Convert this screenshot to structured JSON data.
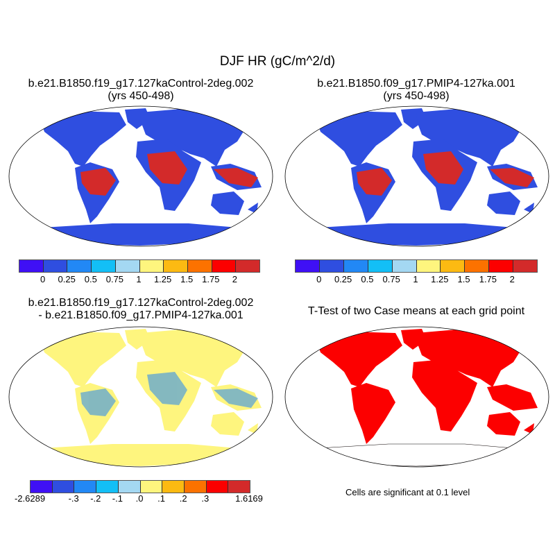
{
  "title": "DJF HR (gC/m^2/d)",
  "panels": [
    {
      "title_line1": "b.e21.B1850.f19_g17.127kaControl-2deg.002",
      "title_line2": "(yrs 450-498)"
    },
    {
      "title_line1": "b.e21.B1850.f09_g17.PMIP4-127ka.001",
      "title_line2": "(yrs 450-498)"
    },
    {
      "title_line1": "b.e21.B1850.f19_g17.127kaControl-2deg.002",
      "title_line2": "- b.e21.B1850.f09_g17.PMIP4-127ka.001"
    },
    {
      "title_line1": "T-Test of two Case means at each grid point",
      "note": "Cells are significant at 0.1 level"
    }
  ],
  "colorbar_colors": [
    "#3f10f5",
    "#2f4ee0",
    "#2288f5",
    "#13bff6",
    "#a4d8f2",
    "#fef57e",
    "#fcba12",
    "#fc7200",
    "#fc0000",
    "#d32a2a"
  ],
  "colorbar_abs_labels": [
    "0",
    "0.25",
    "0.5",
    "0.75",
    "1",
    "1.25",
    "1.5",
    "1.75",
    "2"
  ],
  "colorbar_diff_labels": [
    "-2.6289",
    "-.3",
    "-.2",
    "-.1",
    ".0",
    ".1",
    ".2",
    ".3",
    "1.6169"
  ],
  "significance_color": "#fc0000"
}
